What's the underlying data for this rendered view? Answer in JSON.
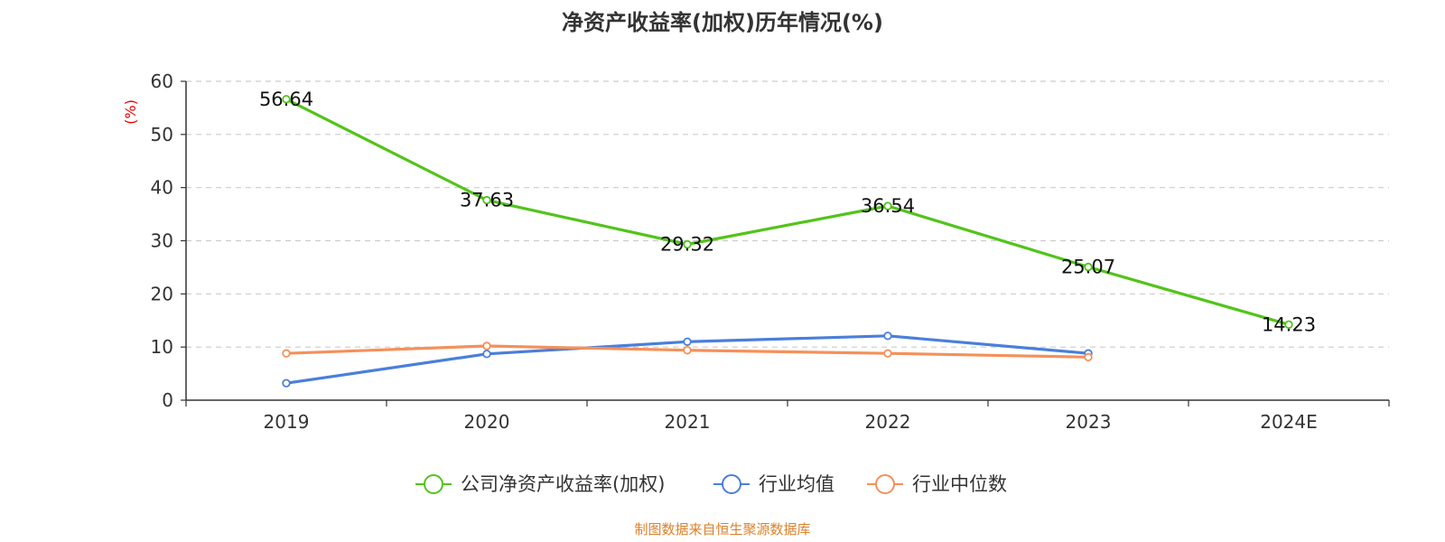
{
  "chart_data": {
    "type": "line",
    "title": "净资产收益率(加权)历年情况(%)",
    "ylabel": "(%)",
    "xlabel": "",
    "categories": [
      "2019",
      "2020",
      "2021",
      "2022",
      "2023",
      "2024E"
    ],
    "ylim": [
      0,
      60
    ],
    "yticks": [
      0,
      10,
      20,
      30,
      40,
      50,
      60
    ],
    "grid": true,
    "legend_position": "bottom",
    "series": [
      {
        "name": "公司净资产收益率(加权)",
        "color": "#52c41a",
        "values": [
          56.64,
          37.63,
          29.32,
          36.54,
          25.07,
          14.23
        ],
        "labels": [
          "56.64",
          "37.63",
          "29.32",
          "36.54",
          "25.07",
          "14.23"
        ]
      },
      {
        "name": "行业均值",
        "color": "#4a7fdb",
        "values": [
          3.2,
          8.7,
          11.0,
          12.1,
          8.8,
          null
        ]
      },
      {
        "name": "行业中位数",
        "color": "#f5905a",
        "values": [
          8.8,
          10.2,
          9.4,
          8.8,
          8.1,
          null
        ]
      }
    ]
  },
  "source": "制图数据来自恒生聚源数据库"
}
